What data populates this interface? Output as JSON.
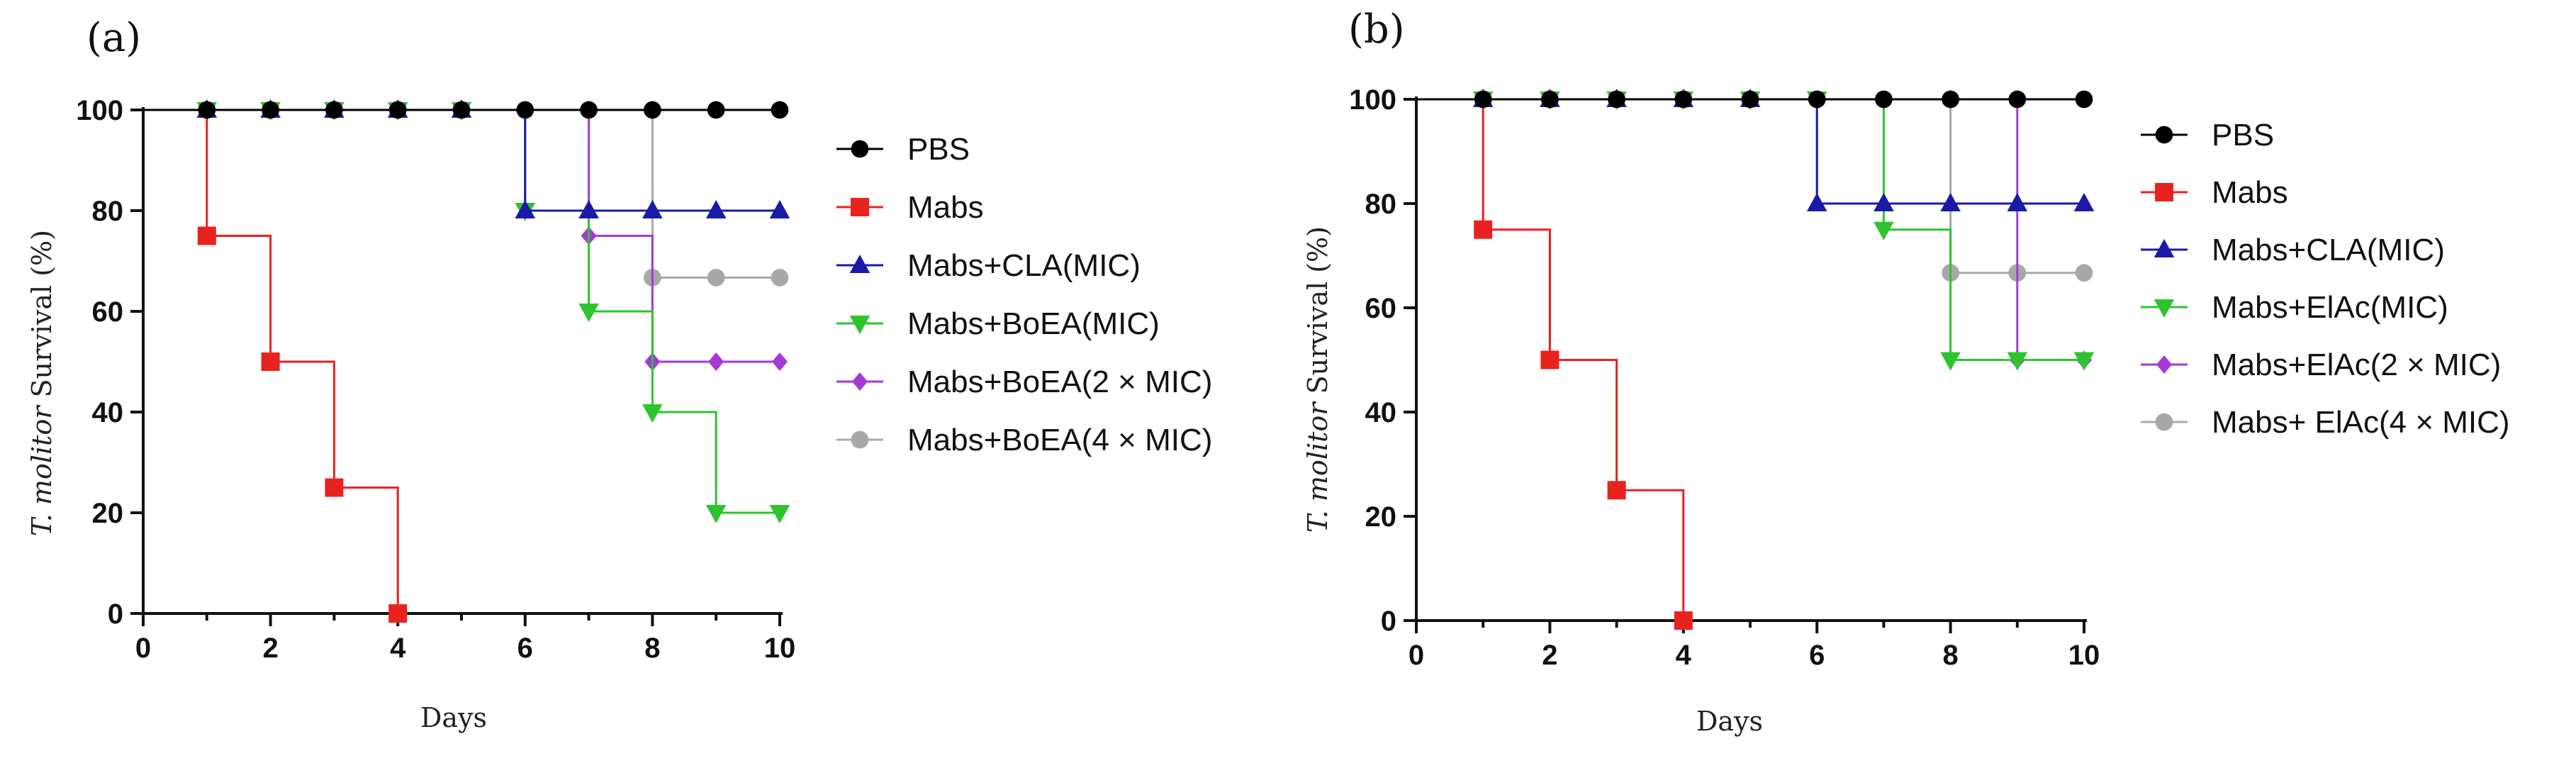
{
  "chart_data": [
    {
      "type": "line",
      "subtype": "survival-step",
      "panel_label": "(a)",
      "xlabel": "Days",
      "ylabel_italic": "T. molitor",
      "ylabel_rest": " Survival (%)",
      "xlim": [
        0,
        10
      ],
      "ylim": [
        0,
        100
      ],
      "xticks": [
        0,
        2,
        4,
        6,
        8,
        10
      ],
      "yticks": [
        0,
        20,
        40,
        60,
        80,
        100
      ],
      "legend_position": "right",
      "series": [
        {
          "name": "PBS",
          "color": "#000000",
          "marker": "circle",
          "x": [
            0,
            1,
            2,
            3,
            4,
            5,
            6,
            7,
            8,
            9,
            10
          ],
          "y": [
            100,
            100,
            100,
            100,
            100,
            100,
            100,
            100,
            100,
            100,
            100
          ],
          "markers_at": [
            1,
            2,
            3,
            4,
            5,
            6,
            7,
            8,
            9,
            10
          ]
        },
        {
          "name": "Mabs",
          "color": "#e8231f",
          "marker": "square",
          "x": [
            0,
            1,
            2,
            3,
            4
          ],
          "y": [
            100,
            75,
            50,
            25,
            0
          ],
          "markers_at": [
            1,
            2,
            3,
            4
          ]
        },
        {
          "name": "Mabs+CLA(MIC)",
          "color": "#1a1aa6",
          "marker": "triangle-up",
          "x": [
            0,
            6,
            10
          ],
          "y": [
            100,
            80,
            80
          ],
          "markers_at": [
            1,
            2,
            3,
            4,
            5,
            6,
            7,
            8,
            9,
            10
          ]
        },
        {
          "name": "Mabs+BoEA(MIC)",
          "color": "#2ec42e",
          "marker": "triangle-down",
          "x": [
            0,
            6,
            7,
            8,
            9,
            10
          ],
          "y": [
            100,
            80,
            60,
            40,
            20,
            20
          ],
          "markers_at": [
            1,
            2,
            3,
            4,
            5,
            6,
            7,
            8,
            9,
            10
          ]
        },
        {
          "name": "Mabs+BoEA(2 × MIC)",
          "color": "#a33ad6",
          "marker": "diamond",
          "x": [
            0,
            7,
            8,
            10
          ],
          "y": [
            100,
            75,
            50,
            50
          ],
          "markers_at": [
            1,
            2,
            3,
            4,
            5,
            7,
            8,
            9,
            10
          ]
        },
        {
          "name": "Mabs+BoEA(4 × MIC)",
          "color": "#a8a8a8",
          "marker": "circle",
          "x": [
            0,
            8,
            10
          ],
          "y": [
            100,
            66.7,
            66.7
          ],
          "markers_at": [
            1,
            2,
            3,
            4,
            5,
            8,
            9,
            10
          ]
        }
      ]
    },
    {
      "type": "line",
      "subtype": "survival-step",
      "panel_label": "(b)",
      "xlabel": "Days",
      "ylabel_italic": "T. molitor",
      "ylabel_rest": " Survival (%)",
      "xlim": [
        0,
        10
      ],
      "ylim": [
        0,
        100
      ],
      "xticks": [
        0,
        2,
        4,
        6,
        8,
        10
      ],
      "yticks": [
        0,
        20,
        40,
        60,
        80,
        100
      ],
      "legend_position": "right",
      "series": [
        {
          "name": "PBS",
          "color": "#000000",
          "marker": "circle",
          "x": [
            0,
            1,
            2,
            3,
            4,
            5,
            6,
            7,
            8,
            9,
            10
          ],
          "y": [
            100,
            100,
            100,
            100,
            100,
            100,
            100,
            100,
            100,
            100,
            100
          ],
          "markers_at": [
            1,
            2,
            3,
            4,
            5,
            6,
            7,
            8,
            9,
            10
          ]
        },
        {
          "name": "Mabs",
          "color": "#e8231f",
          "marker": "square",
          "x": [
            0,
            1,
            2,
            3,
            4
          ],
          "y": [
            100,
            75,
            50,
            25,
            0
          ],
          "markers_at": [
            1,
            2,
            3,
            4
          ]
        },
        {
          "name": "Mabs+CLA(MIC)",
          "color": "#1a1aa6",
          "marker": "triangle-up",
          "x": [
            0,
            6,
            10
          ],
          "y": [
            100,
            80,
            80
          ],
          "markers_at": [
            1,
            2,
            3,
            4,
            5,
            6,
            7,
            8,
            9,
            10
          ]
        },
        {
          "name": "Mabs+ElAc(MIC)",
          "color": "#2ec42e",
          "marker": "triangle-down",
          "x": [
            0,
            7,
            8,
            10
          ],
          "y": [
            100,
            75,
            50,
            50
          ],
          "markers_at": [
            1,
            2,
            3,
            4,
            5,
            6,
            7,
            8,
            9,
            10
          ]
        },
        {
          "name": "Mabs+ElAc(2 × MIC)",
          "color": "#a33ad6",
          "marker": "diamond",
          "x": [
            0,
            9,
            10
          ],
          "y": [
            100,
            50,
            50
          ],
          "markers_at": [
            1,
            2,
            3,
            4,
            5,
            9,
            10
          ]
        },
        {
          "name": "Mabs+ ElAc(4 × MIC)",
          "color": "#a8a8a8",
          "marker": "circle",
          "x": [
            0,
            8,
            10
          ],
          "y": [
            100,
            66.7,
            66.7
          ],
          "markers_at": [
            1,
            2,
            3,
            4,
            5,
            8,
            9,
            10
          ]
        }
      ]
    }
  ]
}
